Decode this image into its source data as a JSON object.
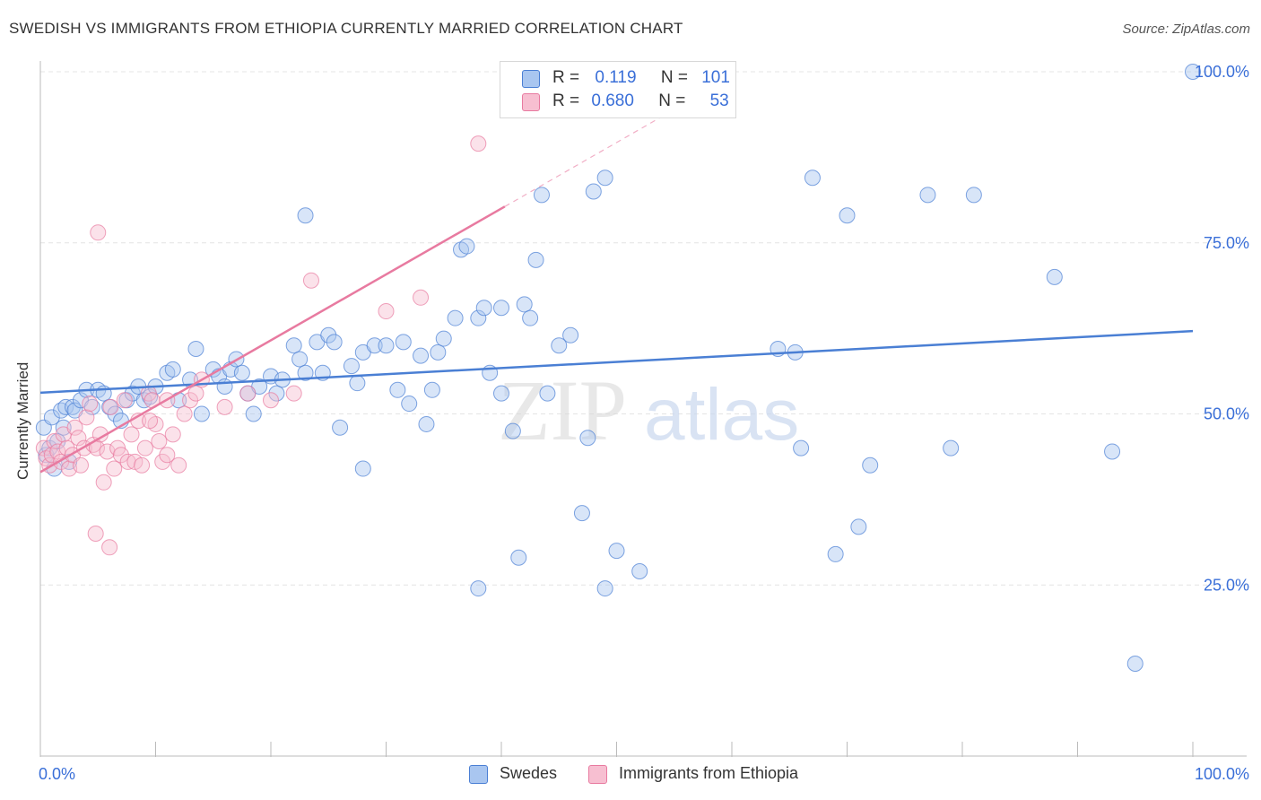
{
  "title": "SWEDISH VS IMMIGRANTS FROM ETHIOPIA CURRENTLY MARRIED CORRELATION CHART",
  "source": "Source: ZipAtlas.com",
  "watermark": {
    "zip": "ZIP",
    "atlas": "atlas"
  },
  "legend": {
    "rows": [
      {
        "r_label": "R =",
        "r_value": "0.119",
        "n_label": "N =",
        "n_value": "101",
        "color": "#4a7fd4",
        "fill": "#a9c6f0"
      },
      {
        "r_label": "R =",
        "r_value": "0.680",
        "n_label": "N =",
        "n_value": "53",
        "color": "#e87aa0",
        "fill": "#f7bfd1"
      }
    ]
  },
  "bottom_legend": [
    {
      "label": "Swedes",
      "color": "#4a7fd4",
      "fill": "#a9c6f0"
    },
    {
      "label": "Immigrants from Ethiopia",
      "color": "#e87aa0",
      "fill": "#f7bfd1"
    }
  ],
  "chart_data": {
    "type": "scatter",
    "title": "SWEDISH VS IMMIGRANTS FROM ETHIOPIA CURRENTLY MARRIED CORRELATION CHART",
    "xlabel": "",
    "ylabel": "Currently Married",
    "xlim": [
      0,
      100
    ],
    "ylim": [
      0,
      100
    ],
    "x_tick_labels": [
      "0.0%",
      "100.0%"
    ],
    "y_tick_labels": [
      "25.0%",
      "50.0%",
      "75.0%",
      "100.0%"
    ],
    "y_ticks": [
      25,
      50,
      75,
      100
    ],
    "series": [
      {
        "name": "Swedes",
        "color": "#4a7fd4",
        "fill": "#a9c6f0",
        "trend": {
          "x0": 0,
          "y0": 53.1,
          "x1": 100,
          "y1": 62.1
        },
        "points": [
          [
            0.3,
            48
          ],
          [
            0.5,
            44
          ],
          [
            0.8,
            45
          ],
          [
            1,
            49.5
          ],
          [
            1.2,
            42
          ],
          [
            1.5,
            46
          ],
          [
            1.8,
            50.5
          ],
          [
            2,
            48
          ],
          [
            2.2,
            51
          ],
          [
            2.5,
            43
          ],
          [
            2.8,
            51
          ],
          [
            3,
            50.5
          ],
          [
            3.5,
            52
          ],
          [
            4,
            53.5
          ],
          [
            4.5,
            51
          ],
          [
            5,
            53.5
          ],
          [
            5.5,
            53
          ],
          [
            6,
            51
          ],
          [
            6.5,
            50
          ],
          [
            7,
            49
          ],
          [
            7.5,
            52
          ],
          [
            8,
            53
          ],
          [
            9,
            52
          ],
          [
            9.5,
            52.5
          ],
          [
            8.5,
            54
          ],
          [
            10,
            54
          ],
          [
            11,
            56
          ],
          [
            12,
            52
          ],
          [
            11.5,
            56.5
          ],
          [
            13,
            55
          ],
          [
            13.5,
            59.5
          ],
          [
            14,
            50
          ],
          [
            15,
            56.5
          ],
          [
            15.5,
            55.5
          ],
          [
            16,
            54
          ],
          [
            16.5,
            56.5
          ],
          [
            17,
            58
          ],
          [
            17.5,
            56
          ],
          [
            18,
            53
          ],
          [
            18.5,
            50
          ],
          [
            19,
            54
          ],
          [
            20,
            55.5
          ],
          [
            20.5,
            53
          ],
          [
            21,
            55
          ],
          [
            22,
            60
          ],
          [
            22.5,
            58
          ],
          [
            23,
            56
          ],
          [
            24,
            60.5
          ],
          [
            24.5,
            56
          ],
          [
            25,
            61.5
          ],
          [
            25.5,
            60.5
          ],
          [
            26,
            48
          ],
          [
            27,
            57
          ],
          [
            27.5,
            54.5
          ],
          [
            28,
            59
          ],
          [
            29,
            60
          ],
          [
            30,
            60
          ],
          [
            31,
            53.5
          ],
          [
            31.5,
            60.5
          ],
          [
            32,
            51.5
          ],
          [
            33,
            58.5
          ],
          [
            33.5,
            48.5
          ],
          [
            34,
            53.5
          ],
          [
            34.5,
            59
          ],
          [
            35,
            61
          ],
          [
            36,
            64
          ],
          [
            36.5,
            74
          ],
          [
            37,
            74.5
          ],
          [
            38,
            64
          ],
          [
            38.5,
            65.5
          ],
          [
            39,
            56
          ],
          [
            40,
            53
          ],
          [
            41,
            47.5
          ],
          [
            42,
            66
          ],
          [
            42.5,
            64
          ],
          [
            43,
            72.5
          ],
          [
            43.5,
            82
          ],
          [
            44,
            53
          ],
          [
            45,
            60
          ],
          [
            46,
            61.5
          ],
          [
            47,
            35.5
          ],
          [
            47.5,
            46.5
          ],
          [
            48,
            82.5
          ],
          [
            49,
            84.5
          ],
          [
            52,
            27
          ],
          [
            40,
            65.5
          ],
          [
            23,
            79
          ],
          [
            28,
            42
          ],
          [
            38,
            24.5
          ],
          [
            41.5,
            29
          ],
          [
            49,
            24.5
          ],
          [
            50,
            30
          ],
          [
            64,
            59.5
          ],
          [
            65.5,
            59
          ],
          [
            66,
            45
          ],
          [
            67,
            84.5
          ],
          [
            69,
            29.5
          ],
          [
            70,
            79
          ],
          [
            71,
            33.5
          ],
          [
            72,
            42.5
          ],
          [
            77,
            82
          ],
          [
            79,
            45
          ],
          [
            81,
            82
          ],
          [
            88,
            70
          ],
          [
            93,
            44.5
          ],
          [
            95,
            13.5
          ],
          [
            100,
            100
          ]
        ]
      },
      {
        "name": "Immigrants from Ethiopia",
        "color": "#e87aa0",
        "fill": "#f7bfd1",
        "trend": {
          "x0": 0,
          "y0": 41.5,
          "x1": 40.3,
          "y1": 80.3,
          "dash_x1": 60,
          "dash_y1": 99.3
        },
        "points": [
          [
            0.3,
            45
          ],
          [
            0.5,
            43.5
          ],
          [
            0.8,
            42.5
          ],
          [
            1,
            44
          ],
          [
            1.2,
            46
          ],
          [
            1.5,
            44.5
          ],
          [
            1.8,
            43
          ],
          [
            2,
            47
          ],
          [
            2.3,
            45
          ],
          [
            2.5,
            42
          ],
          [
            2.8,
            44
          ],
          [
            3,
            48
          ],
          [
            3.3,
            46.5
          ],
          [
            3.5,
            42.5
          ],
          [
            3.8,
            45
          ],
          [
            4,
            49.5
          ],
          [
            4.3,
            51.5
          ],
          [
            4.6,
            45.5
          ],
          [
            4.9,
            45
          ],
          [
            5.2,
            47
          ],
          [
            5.5,
            40
          ],
          [
            5.8,
            44.5
          ],
          [
            6.1,
            51
          ],
          [
            6.4,
            42
          ],
          [
            6.7,
            45
          ],
          [
            7,
            44
          ],
          [
            7.3,
            52
          ],
          [
            7.6,
            43
          ],
          [
            7.9,
            47
          ],
          [
            8.2,
            43
          ],
          [
            8.5,
            49
          ],
          [
            8.8,
            42.5
          ],
          [
            9.1,
            45
          ],
          [
            9.4,
            53
          ],
          [
            9.7,
            52
          ],
          [
            10,
            48.5
          ],
          [
            10.3,
            46
          ],
          [
            10.6,
            43
          ],
          [
            11,
            44
          ],
          [
            11.5,
            47
          ],
          [
            12,
            42.5
          ],
          [
            12.5,
            50
          ],
          [
            13,
            52
          ],
          [
            13.5,
            53
          ],
          [
            14,
            55
          ],
          [
            16,
            51
          ],
          [
            18,
            53
          ],
          [
            20,
            52
          ],
          [
            22,
            53
          ],
          [
            23.5,
            69.5
          ],
          [
            30,
            65
          ],
          [
            33,
            67
          ],
          [
            38,
            89.5
          ],
          [
            4.8,
            32.5
          ],
          [
            6,
            30.5
          ],
          [
            5,
            76.5
          ],
          [
            9.5,
            49
          ],
          [
            11,
            52
          ]
        ]
      }
    ]
  }
}
